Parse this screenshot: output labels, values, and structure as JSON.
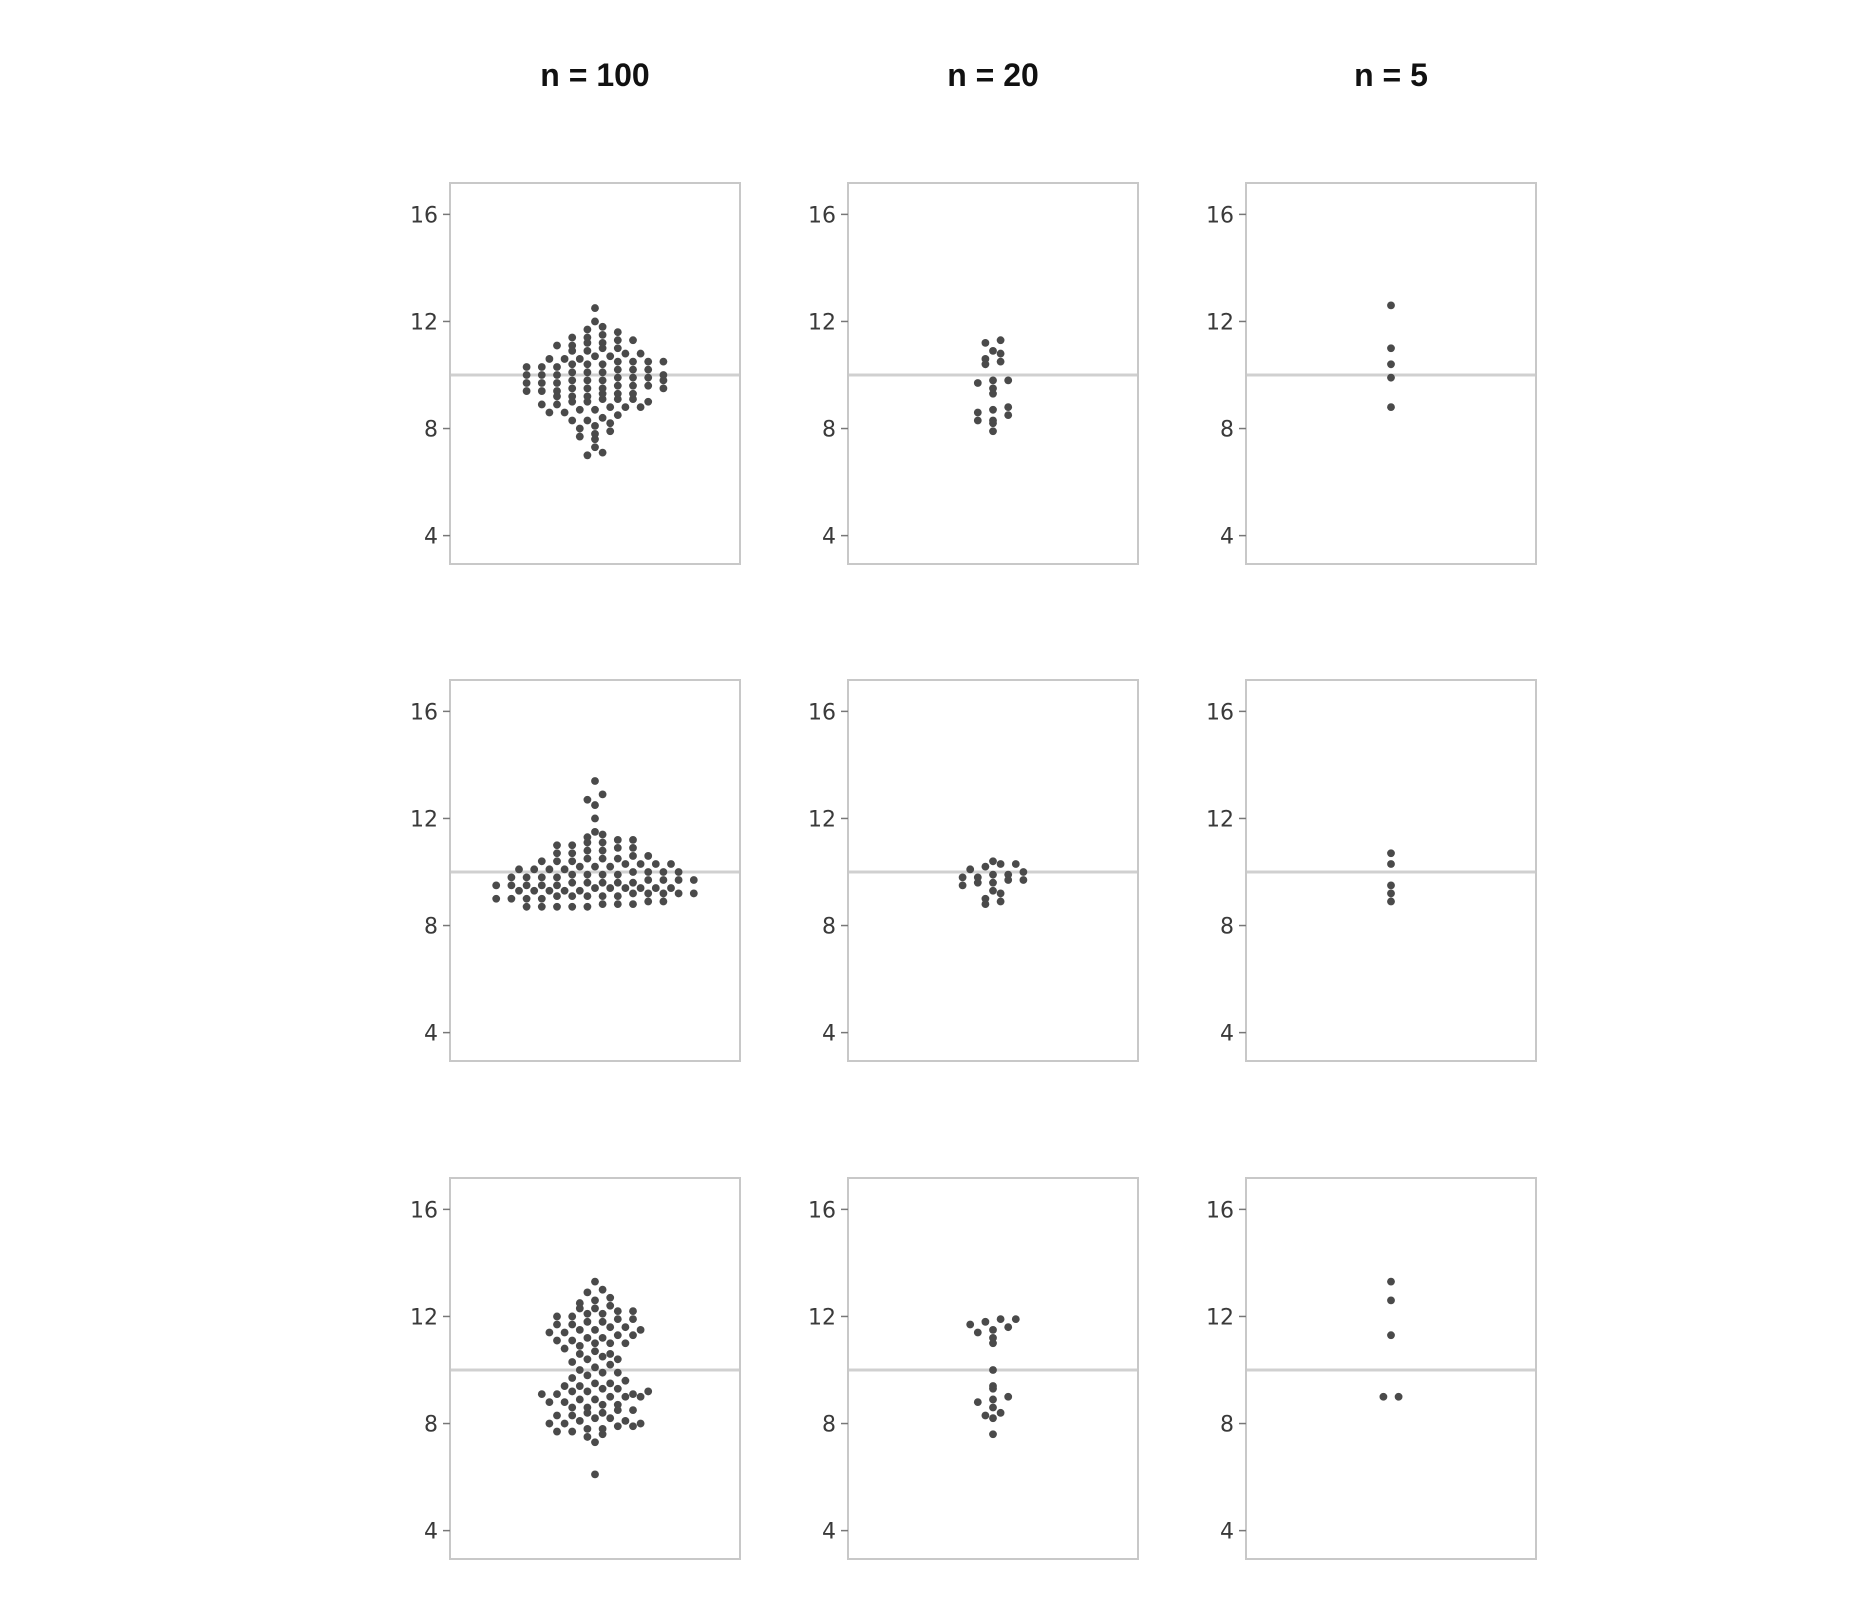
{
  "chart_data": {
    "type": "scatter",
    "layout": "3x3 grid of beeswarm dot plots",
    "columns": [
      "n = 100",
      "n = 20",
      "n = 5"
    ],
    "ylim": [
      3.5,
      16.5
    ],
    "yticks": [
      4,
      8,
      12,
      16
    ],
    "reference_line": 10,
    "grid": false,
    "panels": [
      {
        "row": 0,
        "col": 0,
        "n": 100,
        "values": [
          7.0,
          7.1,
          7.3,
          7.6,
          7.7,
          7.8,
          7.9,
          8.0,
          8.1,
          8.2,
          8.3,
          8.3,
          8.4,
          8.5,
          8.6,
          8.6,
          8.7,
          8.7,
          8.8,
          8.8,
          8.8,
          8.9,
          8.9,
          9.0,
          9.0,
          9.1,
          9.1,
          9.1,
          9.2,
          9.2,
          9.2,
          9.3,
          9.3,
          9.3,
          9.4,
          9.4,
          9.4,
          9.5,
          9.5,
          9.5,
          9.6,
          9.6,
          9.6,
          9.7,
          9.7,
          9.7,
          9.8,
          9.8,
          9.8,
          9.9,
          9.9,
          9.9,
          10.0,
          10.0,
          10.0,
          10.1,
          10.1,
          10.1,
          10.2,
          10.2,
          10.2,
          10.3,
          10.3,
          10.3,
          10.4,
          10.4,
          10.4,
          10.5,
          10.5,
          10.5,
          10.6,
          10.6,
          10.6,
          10.7,
          10.7,
          10.8,
          10.8,
          10.9,
          10.9,
          11.0,
          11.0,
          11.1,
          11.1,
          11.2,
          11.2,
          11.3,
          11.3,
          11.4,
          11.4,
          11.5,
          11.6,
          11.7,
          11.8,
          12.0,
          12.5,
          9.0,
          9.5,
          10.0,
          10.5,
          9.8
        ]
      },
      {
        "row": 0,
        "col": 1,
        "n": 20,
        "values": [
          7.9,
          8.2,
          8.3,
          8.3,
          8.5,
          8.6,
          8.7,
          8.8,
          9.3,
          9.5,
          9.7,
          9.8,
          9.8,
          10.4,
          10.5,
          10.6,
          10.8,
          10.9,
          11.2,
          11.3
        ]
      },
      {
        "row": 0,
        "col": 2,
        "n": 5,
        "values": [
          8.8,
          9.9,
          10.4,
          11.0,
          12.6
        ]
      },
      {
        "row": 1,
        "col": 0,
        "n": 100,
        "values": [
          8.7,
          8.7,
          8.7,
          8.7,
          8.7,
          8.8,
          8.8,
          8.8,
          8.9,
          8.9,
          9.0,
          9.0,
          9.0,
          9.0,
          9.1,
          9.1,
          9.1,
          9.1,
          9.1,
          9.2,
          9.2,
          9.2,
          9.2,
          9.2,
          9.3,
          9.3,
          9.3,
          9.3,
          9.3,
          9.4,
          9.4,
          9.4,
          9.4,
          9.4,
          9.4,
          9.5,
          9.5,
          9.5,
          9.5,
          9.5,
          9.6,
          9.6,
          9.6,
          9.6,
          9.6,
          9.7,
          9.7,
          9.7,
          9.7,
          9.8,
          9.8,
          9.8,
          9.8,
          9.9,
          9.9,
          9.9,
          9.9,
          10.0,
          10.0,
          10.0,
          10.0,
          10.1,
          10.1,
          10.1,
          10.1,
          10.2,
          10.2,
          10.2,
          10.3,
          10.3,
          10.3,
          10.3,
          10.4,
          10.4,
          10.4,
          10.5,
          10.5,
          10.5,
          10.6,
          10.6,
          10.7,
          10.7,
          10.8,
          10.8,
          10.9,
          10.9,
          11.0,
          11.0,
          11.1,
          11.1,
          11.2,
          11.2,
          11.3,
          11.4,
          11.5,
          12.0,
          12.5,
          12.7,
          12.9,
          13.4
        ]
      },
      {
        "row": 1,
        "col": 1,
        "n": 20,
        "values": [
          8.8,
          8.9,
          9.0,
          9.2,
          9.3,
          9.5,
          9.6,
          9.6,
          9.7,
          9.7,
          9.8,
          9.8,
          9.9,
          9.9,
          10.0,
          10.1,
          10.2,
          10.3,
          10.3,
          10.4
        ]
      },
      {
        "row": 1,
        "col": 2,
        "n": 5,
        "values": [
          8.9,
          9.2,
          9.5,
          10.3,
          10.7
        ]
      },
      {
        "row": 2,
        "col": 0,
        "n": 100,
        "values": [
          6.1,
          7.3,
          7.5,
          7.6,
          7.7,
          7.7,
          7.8,
          7.8,
          7.9,
          7.9,
          8.0,
          8.0,
          8.1,
          8.2,
          8.2,
          8.3,
          8.3,
          8.4,
          8.4,
          8.5,
          8.5,
          8.6,
          8.6,
          8.7,
          8.7,
          8.8,
          8.8,
          8.9,
          8.9,
          9.0,
          9.0,
          9.1,
          9.1,
          9.2,
          9.2,
          9.3,
          9.3,
          9.4,
          9.4,
          9.5,
          9.5,
          9.6,
          9.7,
          9.8,
          9.9,
          10.0,
          10.1,
          10.2,
          10.3,
          10.4,
          10.5,
          10.6,
          10.7,
          10.8,
          10.9,
          11.0,
          11.0,
          11.1,
          11.1,
          11.2,
          11.2,
          11.3,
          11.3,
          11.4,
          11.4,
          11.5,
          11.5,
          11.6,
          11.6,
          11.7,
          11.7,
          11.8,
          11.8,
          11.9,
          11.9,
          12.0,
          12.0,
          12.1,
          12.1,
          12.2,
          12.2,
          12.3,
          12.3,
          12.4,
          12.5,
          12.6,
          12.7,
          12.9,
          13.0,
          13.3,
          9.0,
          9.1,
          9.2,
          8.1,
          8.0,
          11.0,
          11.5,
          10.6,
          10.4,
          9.9
        ]
      },
      {
        "row": 2,
        "col": 1,
        "n": 20,
        "values": [
          7.6,
          8.2,
          8.3,
          8.4,
          8.6,
          8.8,
          8.9,
          9.0,
          9.3,
          9.4,
          10.0,
          11.0,
          11.2,
          11.4,
          11.5,
          11.6,
          11.7,
          11.8,
          11.9,
          11.9
        ]
      },
      {
        "row": 2,
        "col": 2,
        "n": 5,
        "values": [
          9.0,
          9.0,
          11.3,
          12.6,
          13.3
        ]
      }
    ]
  }
}
